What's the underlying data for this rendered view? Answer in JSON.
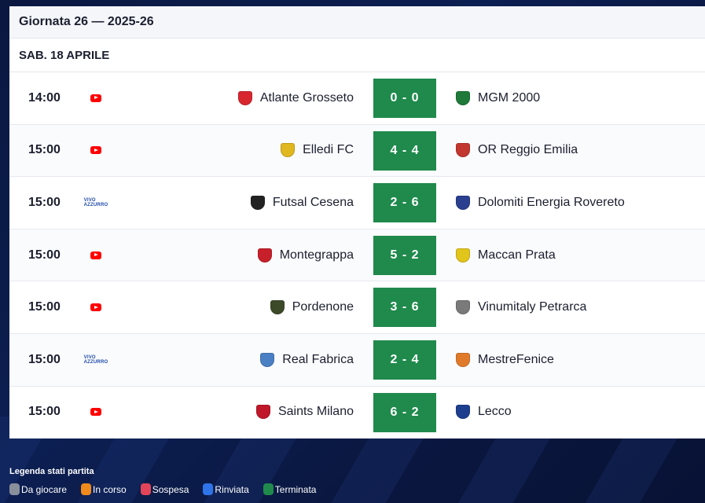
{
  "round_title": "Giornata 26 — 2025-26",
  "date_label": "SAB. 18 APRILE",
  "matches": [
    {
      "time": "14:00",
      "tv": "youtube",
      "home": "Atlante Grosseto",
      "home_color": "#d8262f",
      "score": "0 - 0",
      "away": "MGM 2000",
      "away_color": "#1f7a3a"
    },
    {
      "time": "15:00",
      "tv": "youtube",
      "home": "Elledi FC",
      "home_color": "#e0b71e",
      "score": "4 - 4",
      "away": "OR Reggio Emilia",
      "away_color": "#c2372f"
    },
    {
      "time": "15:00",
      "tv": "vivo",
      "home": "Futsal Cesena",
      "home_color": "#222222",
      "score": "2 - 6",
      "away": "Dolomiti Energia Rovereto",
      "away_color": "#2a3f8f"
    },
    {
      "time": "15:00",
      "tv": "youtube",
      "home": "Montegrappa",
      "home_color": "#c8202b",
      "score": "5 - 2",
      "away": "Maccan Prata",
      "away_color": "#e2c51b"
    },
    {
      "time": "15:00",
      "tv": "youtube",
      "home": "Pordenone",
      "home_color": "#3c4a2a",
      "score": "3 - 6",
      "away": "Vinumitaly Petrarca",
      "away_color": "#7a7a7a"
    },
    {
      "time": "15:00",
      "tv": "vivo",
      "home": "Real Fabrica",
      "home_color": "#4a7fc4",
      "score": "2 - 4",
      "away": "MestreFenice",
      "away_color": "#e07a2a"
    },
    {
      "time": "15:00",
      "tv": "youtube",
      "home": "Saints Milano",
      "home_color": "#c0182a",
      "score": "6 - 2",
      "away": "Lecco",
      "away_color": "#1d3e8f"
    }
  ],
  "tv_labels": {
    "vivo_line1": "VIVO",
    "vivo_line2": "AZZURRO"
  },
  "legend": {
    "title": "Legenda stati partita",
    "items": [
      {
        "label": "Da giocare",
        "color": "#8a8f9c"
      },
      {
        "label": "In corso",
        "color": "#f08a1c"
      },
      {
        "label": "Sospesa",
        "color": "#e2455a"
      },
      {
        "label": "Rinviata",
        "color": "#2f74e8"
      },
      {
        "label": "Terminata",
        "color": "#1f8a4c"
      }
    ]
  }
}
